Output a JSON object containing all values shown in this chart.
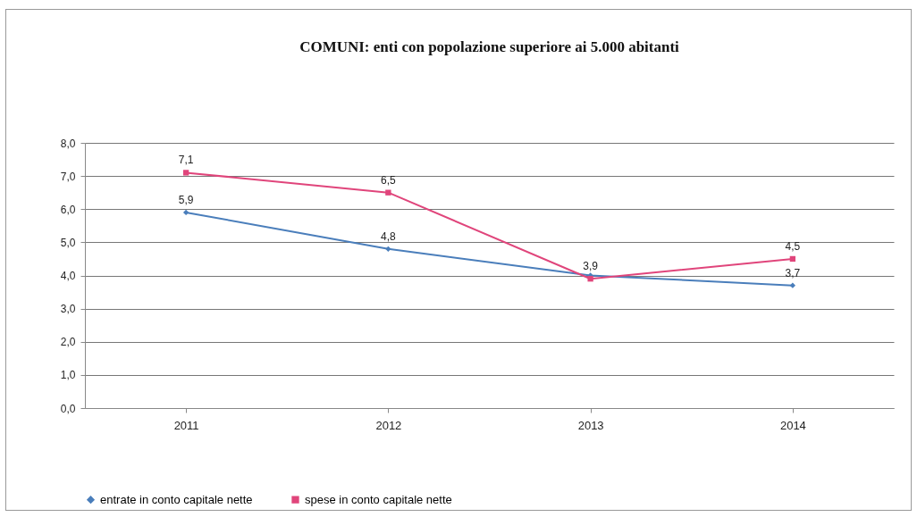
{
  "chart_data": {
    "type": "line",
    "title": "COMUNI: enti con popolazione superiore ai 5.000 abitanti",
    "categories": [
      "2011",
      "2012",
      "2013",
      "2014"
    ],
    "series": [
      {
        "name": "entrate in conto capitale nette",
        "color": "#4a7ebb",
        "marker": "diamond",
        "values": [
          5.9,
          4.8,
          4.0,
          3.7
        ],
        "value_labels": [
          "5,9",
          "4,8",
          null,
          "3,7"
        ]
      },
      {
        "name": "spese in conto capitale nette",
        "color": "#e0457b",
        "marker": "square",
        "values": [
          7.1,
          6.5,
          3.9,
          4.5
        ],
        "value_labels": [
          "7,1",
          "6,5",
          "3,9",
          "4,5"
        ]
      }
    ],
    "ylim": [
      0,
      8
    ],
    "yticks": [
      {
        "value": 0,
        "label": "0,0"
      },
      {
        "value": 1,
        "label": "1,0"
      },
      {
        "value": 2,
        "label": "2,0"
      },
      {
        "value": 3,
        "label": "3,0"
      },
      {
        "value": 4,
        "label": "4,0"
      },
      {
        "value": 5,
        "label": "5,0"
      },
      {
        "value": 6,
        "label": "6,0"
      },
      {
        "value": 7,
        "label": "7,0"
      },
      {
        "value": 8,
        "label": "8,0"
      }
    ],
    "grid": "y",
    "legend": "bottom",
    "line_style": "solid"
  }
}
